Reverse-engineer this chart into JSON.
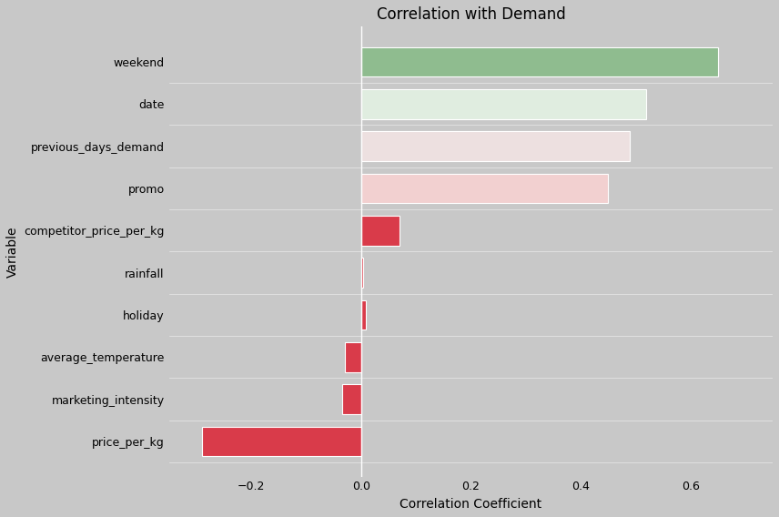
{
  "variables": [
    "price_per_kg",
    "marketing_intensity",
    "average_temperature",
    "holiday",
    "rainfall",
    "competitor_price_per_kg",
    "promo",
    "previous_days_demand",
    "date",
    "weekend"
  ],
  "correlations": [
    -0.29,
    -0.035,
    -0.03,
    0.008,
    0.003,
    0.07,
    0.45,
    0.49,
    0.52,
    0.65
  ],
  "bar_colors": [
    "#d93b4a",
    "#d93b4a",
    "#d93b4a",
    "#d93b4a",
    "#d93b4a",
    "#d93b4a",
    "#f2d0d0",
    "#ede0e0",
    "#e0ede0",
    "#8fbc8f"
  ],
  "title": "Correlation with Demand",
  "xlabel": "Correlation Coefficient",
  "ylabel": "Variable",
  "xlim": [
    -0.35,
    0.75
  ],
  "background_color": "#c8c8c8",
  "fig_background": "#c8c8c8"
}
